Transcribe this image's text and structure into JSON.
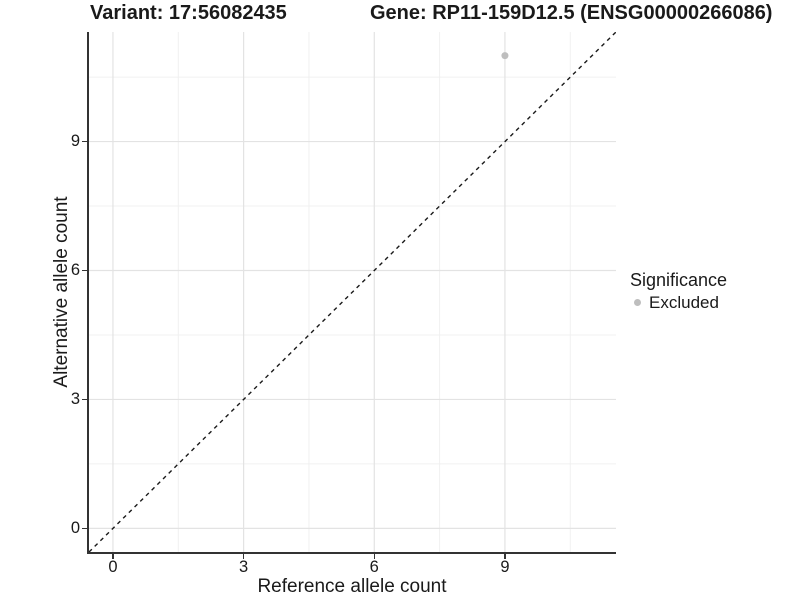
{
  "chart_data": {
    "type": "scatter",
    "title_left": "Variant: 17:56082435",
    "title_right": "Gene: RP11-159D12.5 (ENSG00000266086)",
    "xlabel": "Reference allele count",
    "ylabel": "Alternative allele count",
    "xlim": [
      -0.55,
      11.55
    ],
    "ylim": [
      -0.55,
      11.55
    ],
    "x_ticks": [
      0,
      3,
      6,
      9
    ],
    "y_ticks": [
      0,
      3,
      6,
      9
    ],
    "x_minor_ticks": [
      1.5,
      4.5,
      7.5,
      10.5
    ],
    "y_minor_ticks": [
      1.5,
      4.5,
      7.5,
      10.5
    ],
    "grid": "major and minor gridlines, white panel background",
    "points": [
      {
        "x": 9,
        "y": 11,
        "series": "Excluded"
      }
    ],
    "reference_line": {
      "kind": "identity y=x",
      "style": "dashed",
      "from": -0.55,
      "to": 11.55
    },
    "legend": {
      "title": "Significance",
      "position": "right",
      "items": [
        {
          "label": "Excluded",
          "color": "#bebebe"
        }
      ]
    },
    "colors": {
      "point": "#bebebe",
      "grid_major": "#e3e3e3",
      "grid_minor": "#f0f0f0",
      "axis_line": "#333333",
      "reference_line": "#1a1a1a",
      "text": "#1a1a1a",
      "background": "#ffffff"
    }
  }
}
